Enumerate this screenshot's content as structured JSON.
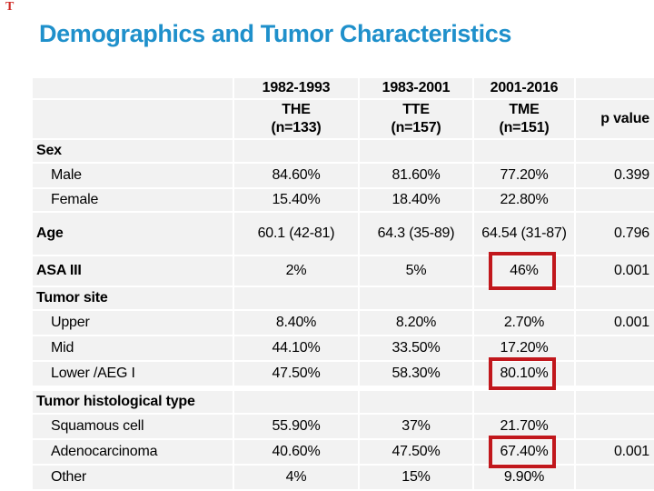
{
  "slide": {
    "title": "Demographics and Tumor Characteristics",
    "corner_mark": "T",
    "colors": {
      "title_blue": "#1f90cb",
      "highlight_red": "#c1171c",
      "row_gray": "#f2f2f2"
    }
  },
  "table": {
    "period_headers": [
      "1982-1993",
      "1983-2001",
      "2001-2016"
    ],
    "group_headers": [
      "THE",
      "TTE",
      "TME"
    ],
    "group_ns": [
      "(n=133)",
      "(n=157)",
      "(n=151)"
    ],
    "p_value_header": "p value",
    "rows": [
      {
        "kind": "section",
        "label": "Sex",
        "values": [
          "",
          "",
          ""
        ],
        "p": ""
      },
      {
        "kind": "sub",
        "label": "Male",
        "values": [
          "84.60%",
          "81.60%",
          "77.20%"
        ],
        "p": "0.399"
      },
      {
        "kind": "subF",
        "label": "Female",
        "values": [
          "15.40%",
          "18.40%",
          "22.80%"
        ],
        "p": ""
      },
      {
        "kind": "age",
        "label": "Age",
        "values": [
          "60.1 (42-81)",
          "64.3 (35-89)",
          "64.54 (31-87)"
        ],
        "p": "0.796"
      },
      {
        "kind": "asa",
        "label": "ASA III",
        "values": [
          "2%",
          "5%",
          "46%"
        ],
        "p": "0.001",
        "highlight": 2
      },
      {
        "kind": "section",
        "label": "Tumor site",
        "values": [
          "",
          "",
          ""
        ],
        "p": ""
      },
      {
        "kind": "sub",
        "label": "Upper",
        "values": [
          "8.40%",
          "8.20%",
          "2.70%"
        ],
        "p": "0.001"
      },
      {
        "kind": "sub",
        "label": "Mid",
        "values": [
          "44.10%",
          "33.50%",
          "17.20%"
        ],
        "p": ""
      },
      {
        "kind": "sub",
        "label": "Lower /AEG I",
        "values": [
          "47.50%",
          "58.30%",
          "80.10%"
        ],
        "p": "",
        "highlight": 2
      },
      {
        "kind": "spacer",
        "h": 4
      },
      {
        "kind": "section",
        "label": "Tumor histological type",
        "values": [
          "",
          "",
          ""
        ],
        "p": ""
      },
      {
        "kind": "sub",
        "label": "Squamous cell",
        "values": [
          "55.90%",
          "37%",
          "21.70%"
        ],
        "p": ""
      },
      {
        "kind": "sub",
        "label": "Adenocarcinoma",
        "values": [
          "40.60%",
          "47.50%",
          "67.40%"
        ],
        "p": "0.001",
        "highlight": 2
      },
      {
        "kind": "sub",
        "label": "Other",
        "values": [
          "4%",
          "15%",
          "9.90%"
        ],
        "p": ""
      }
    ]
  },
  "chart_data": {
    "type": "table",
    "title": "Demographics and Tumor Characteristics",
    "columns": [
      "",
      "1982-1993 THE (n=133)",
      "1983-2001 TTE (n=157)",
      "2001-2016 TME (n=151)",
      "p value"
    ],
    "rows": [
      [
        "Male",
        "84.60%",
        "81.60%",
        "77.20%",
        "0.399"
      ],
      [
        "Female",
        "15.40%",
        "18.40%",
        "22.80%",
        ""
      ],
      [
        "Age",
        "60.1 (42-81)",
        "64.3 (35-89)",
        "64.54 (31-87)",
        "0.796"
      ],
      [
        "ASA III",
        "2%",
        "5%",
        "46%",
        "0.001"
      ],
      [
        "Upper",
        "8.40%",
        "8.20%",
        "2.70%",
        "0.001"
      ],
      [
        "Mid",
        "44.10%",
        "33.50%",
        "17.20%",
        ""
      ],
      [
        "Lower /AEG I",
        "47.50%",
        "58.30%",
        "80.10%",
        ""
      ],
      [
        "Squamous cell",
        "55.90%",
        "37%",
        "21.70%",
        ""
      ],
      [
        "Adenocarcinoma",
        "40.60%",
        "47.50%",
        "67.40%",
        "0.001"
      ],
      [
        "Other",
        "4%",
        "15%",
        "9.90%",
        ""
      ]
    ],
    "highlighted_cells": [
      [
        "ASA III",
        "TME",
        "46%"
      ],
      [
        "Lower /AEG I",
        "TME",
        "80.10%"
      ],
      [
        "Adenocarcinoma",
        "TME",
        "67.40%"
      ]
    ]
  }
}
